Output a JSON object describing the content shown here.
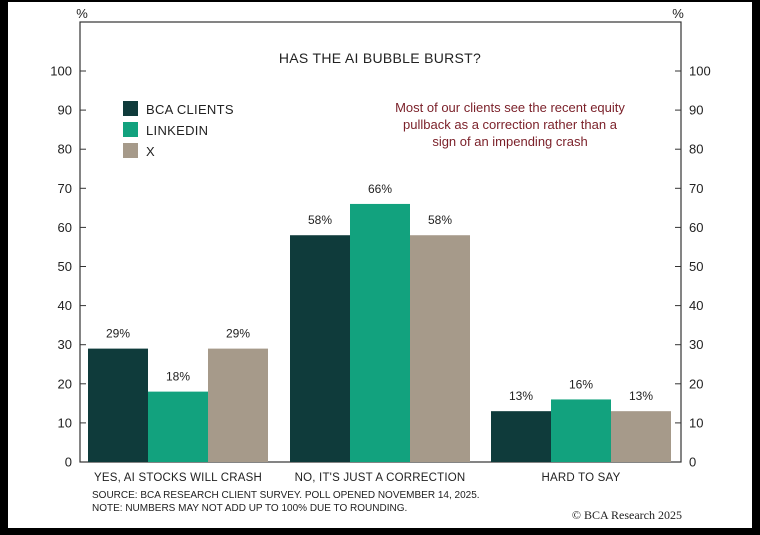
{
  "chart_data": {
    "type": "bar",
    "title": "HAS THE AI BUBBLE BURST?",
    "unit_left": "%",
    "unit_right": "%",
    "categories": [
      "YES, AI STOCKS WILL CRASH",
      "NO, IT'S JUST A CORRECTION",
      "HARD TO SAY"
    ],
    "series": [
      {
        "name": "BCA CLIENTS",
        "values": [
          29,
          58,
          13
        ],
        "labels": [
          "29%",
          "58%",
          "13%"
        ],
        "color": "#0f3b3b"
      },
      {
        "name": "LINKEDIN",
        "values": [
          18,
          66,
          16
        ],
        "labels": [
          "18%",
          "66%",
          "16%"
        ],
        "color": "#12a27e"
      },
      {
        "name": "X",
        "values": [
          29,
          58,
          13
        ],
        "labels": [
          "29%",
          "58%",
          "13%"
        ],
        "color": "#a69a8a"
      }
    ],
    "ylim": [
      0,
      100
    ],
    "yticks": [
      0,
      10,
      20,
      30,
      40,
      50,
      60,
      70,
      80,
      90,
      100
    ],
    "legend_position": "top-left",
    "annotation": [
      "Most of our clients see the recent equity",
      "pullback as a correction rather than a",
      "sign of an impending crash"
    ],
    "grid": false
  },
  "footer": {
    "source": "SOURCE: BCA RESEARCH CLIENT SURVEY. POLL OPENED NOVEMBER 14, 2025.",
    "note": "NOTE: NUMBERS MAY NOT ADD UP TO 100% DUE TO ROUNDING.",
    "credit": "© BCA Research 2025"
  }
}
